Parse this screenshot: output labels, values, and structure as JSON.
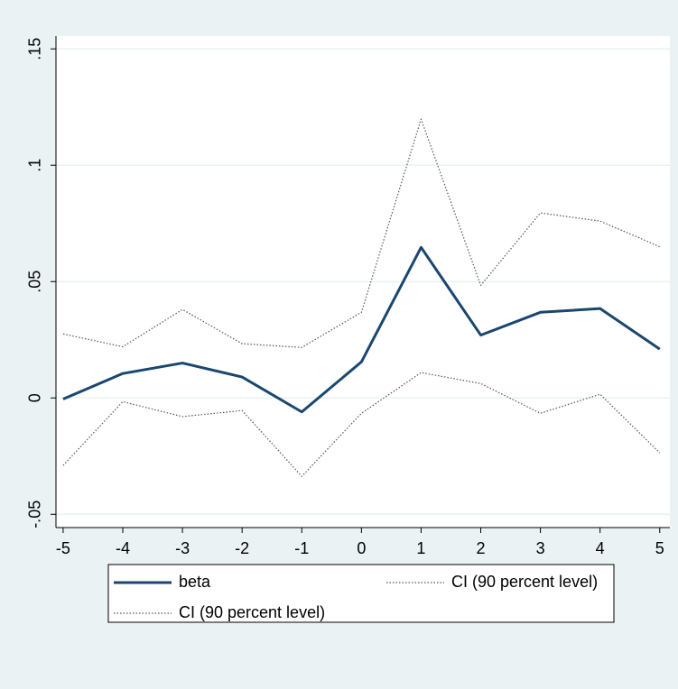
{
  "chart_data": {
    "type": "line",
    "x": [
      -5,
      -4,
      -3,
      -2,
      -1,
      0,
      1,
      2,
      3,
      4,
      5
    ],
    "series": [
      {
        "name": "beta",
        "color": "#1a476f",
        "style": "solid",
        "values": [
          -0.0005,
          0.0105,
          0.015,
          0.009,
          -0.006,
          0.0155,
          0.0647,
          0.027,
          0.0368,
          0.0384,
          0.021
        ]
      },
      {
        "name": "CI (90 percent level)",
        "color": "#555555",
        "style": "dotted",
        "values": [
          0.0275,
          0.022,
          0.038,
          0.0233,
          0.0217,
          0.0368,
          0.1198,
          0.0484,
          0.0795,
          0.076,
          0.065
        ]
      },
      {
        "name": "CI (90 percent level)",
        "color": "#555555",
        "style": "dotted",
        "values": [
          -0.029,
          -0.0016,
          -0.008,
          -0.0054,
          -0.0337,
          -0.0066,
          0.0109,
          0.0062,
          -0.0066,
          0.0016,
          -0.0236
        ]
      }
    ],
    "xlim": [
      -5.12,
      5.17
    ],
    "ylim": [
      -0.0557,
      0.1555
    ],
    "xticks": [
      -5,
      -4,
      -3,
      -2,
      -1,
      0,
      1,
      2,
      3,
      4,
      5
    ],
    "yticks": [
      {
        "value": -0.05,
        "label": "-.05"
      },
      0,
      {
        "value": 0.05,
        "label": ".05"
      },
      {
        "value": 0.1,
        "label": ".1"
      },
      {
        "value": 0.15,
        "label": ".15"
      }
    ],
    "grid": true
  }
}
